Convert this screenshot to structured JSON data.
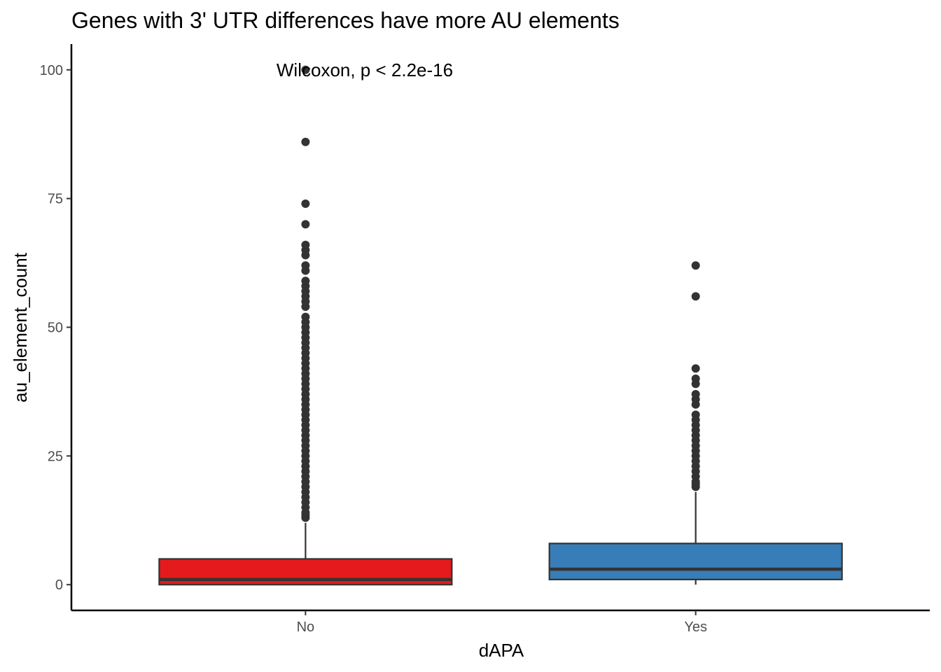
{
  "chart_data": {
    "type": "box",
    "title": "Genes with 3' UTR differences have more AU elements",
    "xlabel": "dAPA",
    "ylabel": "au_element_count",
    "ylim": [
      -5,
      105
    ],
    "yticks": [
      0,
      25,
      50,
      75,
      100
    ],
    "categories": [
      "No",
      "Yes"
    ],
    "annotation": "Wilcoxon, p < 2.2e-16",
    "grid": false,
    "legend": "none",
    "boxes": [
      {
        "category": "No",
        "color": "#E41A1C",
        "min": 0,
        "q1": 0,
        "median": 1,
        "q3": 5,
        "whisker_high": 12,
        "outliers": [
          13,
          13.5,
          14,
          15,
          16,
          17,
          18,
          19,
          20,
          21,
          22,
          23,
          24,
          25,
          26,
          27,
          28,
          29,
          30,
          31,
          32,
          33,
          34,
          35,
          36,
          37,
          38,
          39,
          40,
          41,
          42,
          43,
          44,
          45,
          46,
          47,
          48,
          49,
          50,
          51,
          52,
          54,
          55,
          56,
          57,
          58,
          59,
          61,
          62,
          64,
          65,
          66,
          70,
          74,
          86,
          100
        ]
      },
      {
        "category": "Yes",
        "color": "#377EB8",
        "min": 0,
        "q1": 1,
        "median": 3,
        "q3": 8,
        "whisker_high": 18,
        "outliers": [
          19,
          19.5,
          20,
          21,
          22,
          23,
          24,
          25,
          26,
          27,
          28,
          29,
          30,
          31,
          32,
          33,
          35,
          36,
          37,
          39,
          40,
          42,
          56,
          62
        ]
      }
    ]
  }
}
